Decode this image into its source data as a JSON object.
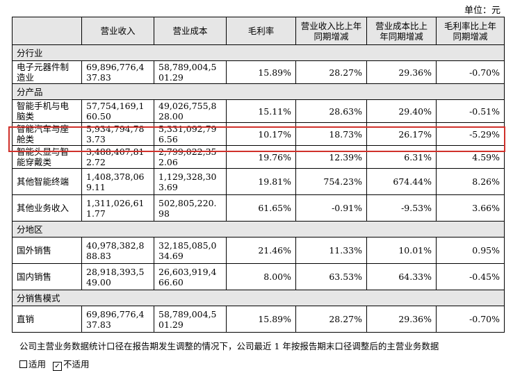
{
  "unit": "单位：元",
  "headers": [
    "",
    "营业收入",
    "营业成本",
    "毛利率",
    "营业收入比上年同期增减",
    "营业成本比上年同期增减",
    "毛利率比上年同期增减"
  ],
  "sections": {
    "industry": "分行业",
    "product": "分产品",
    "region": "分地区",
    "sales": "分销售模式"
  },
  "rows": {
    "electronics": [
      "电子元器件制造业",
      "69,896,776,437.83",
      "58,789,004,501.29",
      "15.89%",
      "28.27%",
      "29.36%",
      "-0.70%"
    ],
    "phone": [
      "智能手机与电脑类",
      "57,754,169,160.50",
      "49,026,755,828.00",
      "15.11%",
      "28.63%",
      "29.40%",
      "-0.51%"
    ],
    "auto": [
      "智能汽车与座舱类",
      "5,934,794,783.73",
      "5,331,092,796.56",
      "10.17%",
      "18.73%",
      "26.17%",
      "-5.29%"
    ],
    "wearable": [
      "智能头显与智能穿戴类",
      "3,488,407,812.72",
      "2,799,022,352.06",
      "19.76%",
      "12.39%",
      "6.31%",
      "4.59%"
    ],
    "other_terminal": [
      "其他智能终端",
      "1,408,378,069.11",
      "1,129,328,303.69",
      "19.81%",
      "754.23%",
      "674.44%",
      "8.26%"
    ],
    "other_business": [
      "其他业务收入",
      "1,311,026,611.77",
      "502,805,220.98",
      "61.65%",
      "-0.91%",
      "-9.53%",
      "3.66%"
    ],
    "overseas": [
      "国外销售",
      "40,978,382,888.83",
      "32,185,085,034.69",
      "21.46%",
      "11.33%",
      "10.01%",
      "0.95%"
    ],
    "domestic": [
      "国内销售",
      "28,918,393,549.00",
      "26,603,919,466.60",
      "8.00%",
      "63.53%",
      "64.33%",
      "-0.45%"
    ],
    "direct": [
      "直销",
      "69,896,776,437.83",
      "58,789,004,501.29",
      "15.89%",
      "28.27%",
      "29.36%",
      "-0.70%"
    ]
  },
  "note": "公司主营业务数据统计口径在报告期发生调整的情况下，公司最近 1 年按报告期末口径调整后的主营业务数据",
  "legend": {
    "applicable": "适用",
    "not_applicable": "不适用",
    "check_mark": "✓"
  }
}
